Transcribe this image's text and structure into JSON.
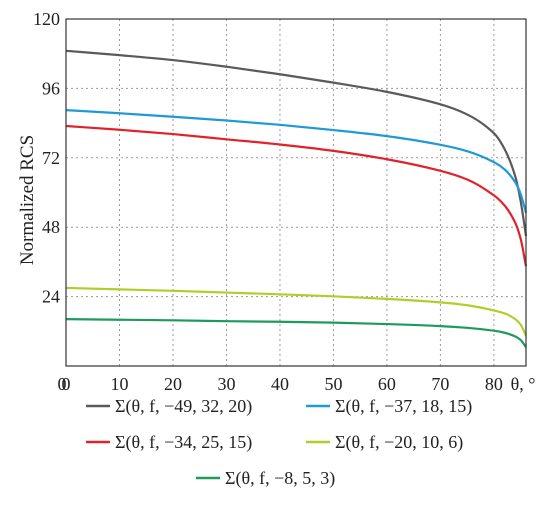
{
  "chart_data": {
    "type": "line",
    "title": "",
    "xlabel": "θ, °",
    "ylabel": "Normalized RCS",
    "xlim": [
      0,
      86
    ],
    "ylim": [
      0,
      120
    ],
    "xticks": [
      0,
      10,
      20,
      30,
      40,
      50,
      60,
      70,
      80
    ],
    "yticks": [
      24,
      48,
      72,
      96,
      120
    ],
    "x_unit_label": "θ, °",
    "grid": true,
    "legend_position": "bottom",
    "x": [
      0,
      10,
      20,
      30,
      40,
      50,
      60,
      70,
      75,
      80,
      82,
      84,
      85,
      86
    ],
    "series": [
      {
        "name": "Σ(θ, f, −49, 32, 20)",
        "color": "#5a5a5a",
        "values": [
          109,
          107.5,
          105.8,
          103.5,
          100.9,
          98,
          94.8,
          90.5,
          87,
          80.5,
          75,
          65.5,
          57,
          45
        ]
      },
      {
        "name": "Σ(θ, f, −37, 18, 15)",
        "color": "#1f9ad6",
        "values": [
          88.5,
          87.4,
          86.2,
          84.9,
          83.4,
          81.6,
          79.5,
          76.5,
          74.3,
          70.5,
          68,
          63.5,
          59.5,
          53
        ]
      },
      {
        "name": "Σ(θ, f, −34, 25, 15)",
        "color": "#e0222a",
        "values": [
          83,
          81.7,
          80.2,
          78.4,
          76.6,
          74.4,
          71.5,
          67.5,
          64.5,
          59,
          55.5,
          49.5,
          44,
          34.5
        ]
      },
      {
        "name": "Σ(θ, f, −20, 10, 6)",
        "color": "#b4cc2a",
        "values": [
          27,
          26.5,
          26,
          25.4,
          24.8,
          24.1,
          23.2,
          22,
          21,
          19.2,
          18.2,
          16.2,
          14.3,
          10.5
        ]
      },
      {
        "name": "Σ(θ, f, −8, 5, 3)",
        "color": "#1f9a5f",
        "values": [
          16.2,
          16,
          15.8,
          15.5,
          15.3,
          15,
          14.5,
          13.8,
          13.2,
          12.2,
          11.5,
          10.2,
          9,
          6.5
        ]
      }
    ]
  }
}
